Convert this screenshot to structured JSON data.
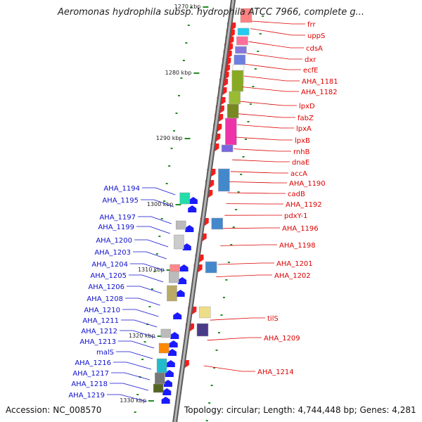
{
  "title": "Aeromonas hydrophila subsp. hydrophila ATCC 7966, complete g...",
  "footer": {
    "accession": "Accession: NC_008570",
    "topology": "Topology: circular; Length: 4,744,448 bp; Genes: 4,281"
  },
  "colors": {
    "backbone": "#8a8a8a",
    "right_label": "#dd0000",
    "left_label": "#1010cc",
    "tick": "#228b22"
  },
  "scale_labels": [
    "1270 kbp",
    "1280 kbp",
    "1290 kbp",
    "1300 kbp",
    "1310 kbp",
    "1320 kbp",
    "1330 kbp"
  ],
  "right_genes": [
    "frr",
    "uppS",
    "cdsA",
    "dxr",
    "ecfE",
    "AHA_1181",
    "AHA_1182",
    "lpxD",
    "fabZ",
    "lpxA",
    "lpxB",
    "rnhB",
    "dnaE",
    "accA",
    "AHA_1190",
    "cadB",
    "AHA_1192",
    "pdxY-1",
    "AHA_1196",
    "AHA_1198",
    "AHA_1201",
    "AHA_1202",
    "tilS",
    "AHA_1209",
    "AHA_1214"
  ],
  "left_genes": [
    "AHA_1194",
    "AHA_1195",
    "AHA_1197",
    "AHA_1199",
    "AHA_1200",
    "AHA_1203",
    "AHA_1204",
    "AHA_1205",
    "AHA_1206",
    "AHA_1208",
    "AHA_1210",
    "AHA_1211",
    "AHA_1212",
    "AHA_1213",
    "malS",
    "AHA_1216",
    "AHA_1217",
    "AHA_1218",
    "AHA_1219"
  ]
}
